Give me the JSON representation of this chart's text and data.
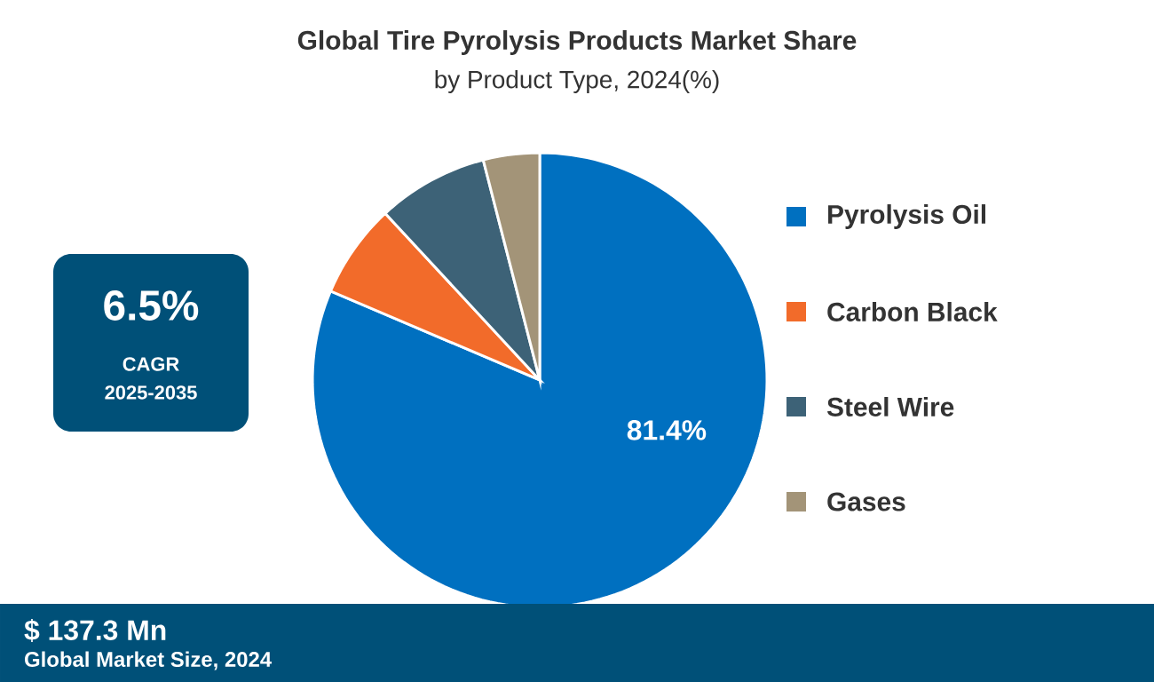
{
  "chart_data": {
    "type": "pie",
    "title": "Global Tire Pyrolysis Products Market Share",
    "subtitle": "by Product Type, 2024(%)",
    "categories": [
      "Pyrolysis Oil",
      "Carbon Black",
      "Steel Wire",
      "Gases"
    ],
    "values": [
      81.4,
      6.7,
      7.9,
      4.0
    ],
    "colors": [
      "#0070c0",
      "#f26b2a",
      "#3d6277",
      "#a39478"
    ],
    "value_labels": [
      "81.4%",
      null,
      null,
      null
    ],
    "legend": "right",
    "annotations": [
      "6.5%",
      "CAGR",
      "2025-2035",
      "$ 137.3 Mn",
      "Global Market Size, 2024"
    ]
  }
}
